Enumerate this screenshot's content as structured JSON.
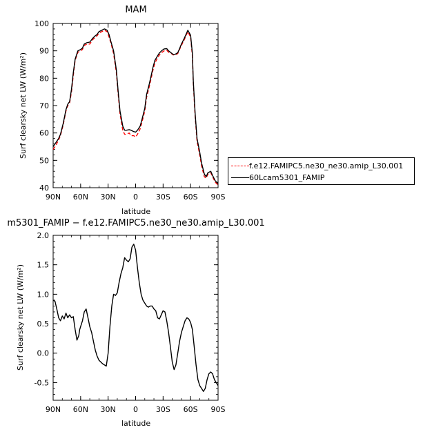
{
  "chart_data": [
    {
      "type": "line",
      "title": "MAM",
      "xlabel": "latitude",
      "ylabel": "Surf clearsky net LW (W/m²)",
      "x_ticks": [
        "90N",
        "60N",
        "30N",
        "0",
        "30S",
        "60S",
        "90S"
      ],
      "x_tick_values": [
        90,
        60,
        30,
        0,
        -30,
        -60,
        -90
      ],
      "xlim": [
        90,
        -90
      ],
      "ylim": [
        40,
        100
      ],
      "y_ticks": [
        40,
        50,
        60,
        70,
        80,
        90,
        100
      ],
      "legend_position": "right",
      "series": [
        {
          "name": "f.e12.FAMIPC5.ne30_ne30.amip_L30.001",
          "color": "#ff0000",
          "dash": true,
          "x": [
            90,
            87,
            84,
            82,
            79,
            76,
            74,
            72,
            70,
            68,
            66,
            63,
            60,
            58,
            56,
            53,
            50,
            47,
            44,
            42,
            40,
            37,
            34,
            31,
            29,
            27,
            24,
            21,
            19,
            17,
            14,
            12,
            10,
            7,
            5,
            2,
            0,
            -2,
            -5,
            -7,
            -10,
            -12,
            -15,
            -17,
            -19,
            -21,
            -24,
            -26,
            -29,
            -31,
            -34,
            -36,
            -39,
            -41,
            -43,
            -46,
            -48,
            -50,
            -53,
            -55,
            -57,
            -60,
            -62,
            -63,
            -65,
            -67,
            -70,
            -72,
            -75,
            -77,
            -79,
            -82,
            -84,
            -87,
            -90
          ],
          "y": [
            54,
            55.5,
            57.5,
            59,
            63,
            68,
            70,
            71,
            75,
            81,
            86.5,
            89.5,
            90,
            90.5,
            92,
            92.5,
            92.5,
            94,
            95,
            95.5,
            96.5,
            97,
            97.5,
            97,
            95,
            93,
            89,
            82,
            74,
            67,
            61,
            59.5,
            59.5,
            60,
            59,
            59,
            58.5,
            59.5,
            61.5,
            64,
            68,
            73,
            77,
            80,
            83,
            85.5,
            87.5,
            88.5,
            89.5,
            90,
            90.2,
            89.5,
            89,
            88.5,
            88.5,
            89,
            90.5,
            92,
            94,
            95.5,
            97,
            95,
            88,
            78,
            66,
            57,
            52,
            48,
            44,
            43.5,
            45,
            45.5,
            44,
            42,
            41
          ]
        },
        {
          "name": "60Lcam5301_FAMIP",
          "color": "#000000",
          "dash": false,
          "x": [
            90,
            87,
            84,
            82,
            79,
            76,
            74,
            72,
            70,
            68,
            66,
            63,
            60,
            58,
            56,
            53,
            50,
            47,
            44,
            42,
            40,
            37,
            34,
            31,
            29,
            27,
            24,
            21,
            19,
            17,
            14,
            12,
            10,
            7,
            5,
            2,
            0,
            -2,
            -5,
            -7,
            -10,
            -12,
            -15,
            -17,
            -19,
            -21,
            -24,
            -26,
            -29,
            -31,
            -34,
            -36,
            -39,
            -41,
            -43,
            -46,
            -48,
            -50,
            -53,
            -55,
            -57,
            -60,
            -62,
            -63,
            -65,
            -67,
            -70,
            -72,
            -75,
            -77,
            -79,
            -82,
            -84,
            -87,
            -90
          ],
          "y": [
            55,
            56.5,
            58,
            59.5,
            63.5,
            68.5,
            70.5,
            71.5,
            76,
            82,
            87,
            90,
            90.5,
            91,
            92.5,
            93,
            93.2,
            94.5,
            95.5,
            96,
            97,
            97.5,
            98,
            97.5,
            96,
            93.5,
            90,
            83,
            75,
            68,
            62.5,
            61,
            61,
            61.2,
            61,
            60.5,
            60.3,
            61,
            62.5,
            65,
            69,
            74,
            78,
            81,
            84,
            86.5,
            88.2,
            89.2,
            90.2,
            90.7,
            90.8,
            90,
            89.2,
            88.7,
            88.7,
            89.3,
            90.8,
            92.5,
            94.5,
            96,
            97.5,
            95.7,
            89,
            79,
            67,
            58,
            53,
            49,
            45,
            44,
            45.5,
            46,
            44.5,
            42.5,
            41.5
          ]
        }
      ]
    },
    {
      "type": "line",
      "title": "m5301_FAMIP − f.e12.FAMIPC5.ne30_ne30.amip_L30.001",
      "xlabel": "latitude",
      "ylabel": "Surf clearsky net LW (W/m²)",
      "x_ticks": [
        "90N",
        "60N",
        "30N",
        "0",
        "30S",
        "60S",
        "90S"
      ],
      "x_tick_values": [
        90,
        60,
        30,
        0,
        -30,
        -60,
        -90
      ],
      "xlim": [
        90,
        -90
      ],
      "ylim": [
        -0.8,
        2.0
      ],
      "y_ticks": [
        -0.5,
        0.0,
        0.5,
        1.0,
        1.5,
        2.0
      ],
      "y_tick_labels": [
        "-0.5",
        "0.0",
        "0.5",
        "1.0",
        "1.5",
        "2.0"
      ],
      "series": [
        {
          "name": "",
          "color": "#000000",
          "dash": false,
          "x": [
            90,
            88,
            86,
            84,
            82,
            80,
            78,
            76,
            74,
            72,
            70,
            68,
            66,
            64,
            62,
            61,
            60,
            58,
            56,
            54,
            52,
            50,
            48,
            46,
            44,
            42,
            40,
            38,
            36,
            34,
            32,
            30,
            28,
            26,
            24,
            22,
            20,
            18,
            16,
            14,
            12,
            10,
            8,
            6,
            4,
            2,
            0,
            -2,
            -4,
            -6,
            -8,
            -10,
            -12,
            -14,
            -16,
            -18,
            -20,
            -22,
            -24,
            -26,
            -28,
            -30,
            -32,
            -34,
            -36,
            -38,
            -40,
            -42,
            -44,
            -46,
            -48,
            -50,
            -52,
            -54,
            -56,
            -58,
            -60,
            -62,
            -64,
            -66,
            -68,
            -70,
            -72,
            -74,
            -76,
            -78,
            -80,
            -82,
            -84,
            -86,
            -88,
            -90
          ],
          "y": [
            0.9,
            0.88,
            0.75,
            0.6,
            0.55,
            0.63,
            0.58,
            0.68,
            0.6,
            0.65,
            0.6,
            0.62,
            0.4,
            0.22,
            0.3,
            0.4,
            0.45,
            0.55,
            0.7,
            0.75,
            0.6,
            0.45,
            0.35,
            0.2,
            0.05,
            -0.05,
            -0.12,
            -0.15,
            -0.18,
            -0.2,
            -0.22,
            0.0,
            0.45,
            0.8,
            1.0,
            0.98,
            1.02,
            1.2,
            1.35,
            1.45,
            1.62,
            1.58,
            1.55,
            1.6,
            1.8,
            1.85,
            1.75,
            1.45,
            1.2,
            1.0,
            0.9,
            0.85,
            0.8,
            0.78,
            0.8,
            0.8,
            0.75,
            0.72,
            0.6,
            0.58,
            0.65,
            0.72,
            0.7,
            0.55,
            0.35,
            0.1,
            -0.15,
            -0.28,
            -0.2,
            0.0,
            0.2,
            0.35,
            0.45,
            0.55,
            0.6,
            0.58,
            0.52,
            0.4,
            0.1,
            -0.2,
            -0.45,
            -0.55,
            -0.6,
            -0.65,
            -0.6,
            -0.45,
            -0.35,
            -0.32,
            -0.35,
            -0.45,
            -0.5,
            -0.55
          ]
        }
      ]
    }
  ]
}
